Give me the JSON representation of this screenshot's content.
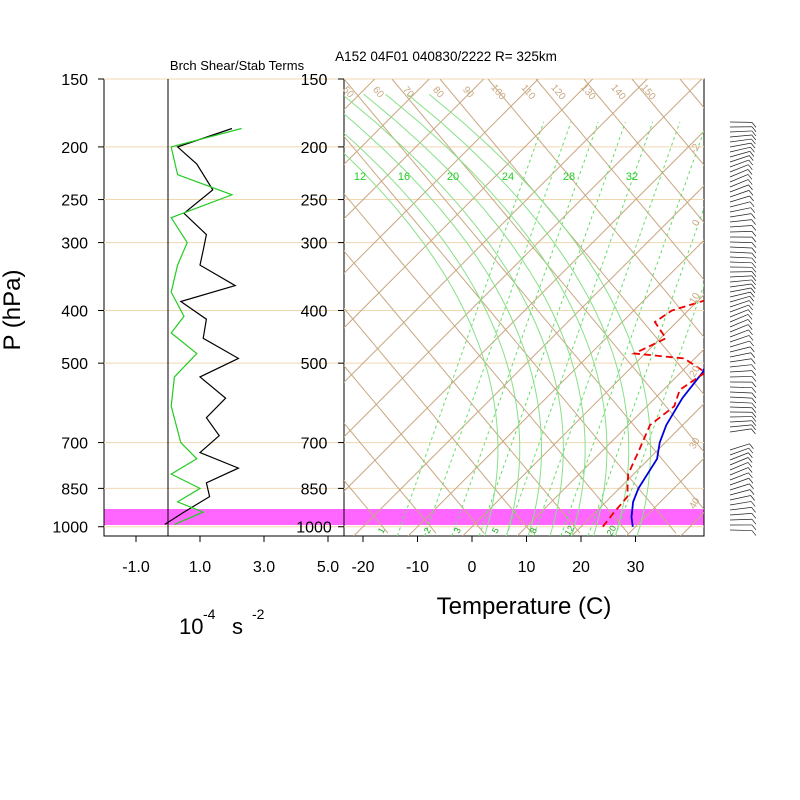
{
  "header": {
    "title": "A152 04F01 040830/2222 R= 325km",
    "panel_title": "Brch Shear/Stab Terms"
  },
  "axes": {
    "pressure_label": "P (hPa)",
    "pressure_levels": [
      150,
      200,
      250,
      300,
      400,
      500,
      700,
      850,
      1000
    ],
    "pressure_tick_labels": [
      "150",
      "200",
      "250",
      "300",
      "400",
      "500",
      "700",
      "850",
      "1000"
    ],
    "left_x_ticks": [
      "-1.0",
      "1.0",
      "3.0",
      "5.0"
    ],
    "left_x_tick_values": [
      -1.0,
      1.0,
      3.0,
      5.0
    ],
    "left_units": {
      "base": "10",
      "exp": "-4",
      "unit": "s",
      "unit_exp": "-2"
    },
    "temp_ticks": [
      "-20",
      "-10",
      "0",
      "10",
      "20",
      "30"
    ],
    "temp_tick_values": [
      -20,
      -10,
      0,
      10,
      20,
      30
    ],
    "temp_label": "Temperature (C)"
  },
  "skewt_labels": {
    "dry_adiabat_labels": [
      "50",
      "60",
      "70",
      "80",
      "90",
      "100",
      "110",
      "120",
      "130",
      "140",
      "150"
    ],
    "mixing_ratio_labels": [
      "12",
      "16",
      "20",
      "24",
      "28",
      "32"
    ],
    "bottom_labels": [
      "1",
      "2",
      "3",
      "5",
      "8",
      "12",
      "20"
    ],
    "right_edge_labels": [
      "-2",
      "0",
      "10",
      "20",
      "30",
      "40"
    ]
  },
  "colors": {
    "temperature": "#0000dd",
    "dewpoint": "#ee0000",
    "shear_term": "#000000",
    "stability_term": "#22cc22",
    "highlight_band": "#ff66ff",
    "background_lines": "#c8a882",
    "mixing_ratio_lines": "#66dd66"
  },
  "chart_data": [
    {
      "type": "line",
      "title": "Brch Shear/Stab Terms",
      "xlabel": "10^-4 s^-2",
      "ylabel": "P (hPa)",
      "xlim": [
        -2.0,
        5.5
      ],
      "ylim": [
        1000,
        150
      ],
      "y_scale": "log",
      "series": [
        {
          "color": "#000000",
          "points": [
            [
              2.0,
              185
            ],
            [
              0.3,
              200
            ],
            [
              0.9,
              215
            ],
            [
              1.4,
              240
            ],
            [
              0.5,
              265
            ],
            [
              1.2,
              290
            ],
            [
              1.1,
              310
            ],
            [
              1.0,
              330
            ],
            [
              2.1,
              360
            ],
            [
              0.4,
              385
            ],
            [
              1.2,
              415
            ],
            [
              1.1,
              450
            ],
            [
              2.2,
              490
            ],
            [
              1.0,
              530
            ],
            [
              1.8,
              580
            ],
            [
              1.2,
              630
            ],
            [
              1.6,
              680
            ],
            [
              1.0,
              730
            ],
            [
              2.2,
              780
            ],
            [
              1.2,
              830
            ],
            [
              1.3,
              880
            ],
            [
              0.5,
              940
            ],
            [
              -0.1,
              990
            ]
          ]
        },
        {
          "color": "#22cc22",
          "points": [
            [
              2.3,
              185
            ],
            [
              0.1,
              200
            ],
            [
              0.3,
              225
            ],
            [
              2.0,
              245
            ],
            [
              0.1,
              270
            ],
            [
              0.6,
              300
            ],
            [
              0.3,
              330
            ],
            [
              0.1,
              370
            ],
            [
              0.5,
              410
            ],
            [
              0.1,
              440
            ],
            [
              0.9,
              480
            ],
            [
              0.2,
              530
            ],
            [
              0.1,
              600
            ],
            [
              0.4,
              700
            ],
            [
              0.9,
              750
            ],
            [
              0.1,
              800
            ],
            [
              1.0,
              850
            ],
            [
              0.3,
              900
            ],
            [
              1.1,
              940
            ],
            [
              0.2,
              990
            ]
          ]
        }
      ]
    },
    {
      "type": "line",
      "title": "A152 04F01 040830/2222 R= 325km",
      "xlabel": "Temperature (C)",
      "ylabel": "P (hPa)",
      "xlim": [
        -23,
        43
      ],
      "ylim": [
        1000,
        150
      ],
      "y_scale": "log",
      "grid": true,
      "series": [
        {
          "color": "#0000dd",
          "points": [
            [
              29.5,
              1000
            ],
            [
              27.5,
              960
            ],
            [
              25.0,
              900
            ],
            [
              23.5,
              850
            ],
            [
              21.5,
              750
            ],
            [
              19.0,
              700
            ],
            [
              17.0,
              650
            ],
            [
              15.0,
              580
            ],
            [
              14.0,
              520
            ],
            [
              11.0,
              460
            ],
            [
              8.0,
              400
            ],
            [
              6.0,
              360
            ],
            [
              4.0,
              330
            ],
            [
              1.0,
              300
            ],
            [
              -3.0,
              270
            ],
            [
              -6.0,
              250
            ],
            [
              -9.0,
              225
            ],
            [
              -12.0,
              205
            ],
            [
              -14.0,
              185
            ]
          ]
        },
        {
          "color": "#ee0000",
          "dashed": true,
          "points": [
            [
              24.0,
              1000
            ],
            [
              23.5,
              950
            ],
            [
              23.0,
              880
            ],
            [
              21.0,
              840
            ],
            [
              19.0,
              800
            ],
            [
              16.5,
              720
            ],
            [
              14.0,
              650
            ],
            [
              15.0,
              600
            ],
            [
              13.0,
              560
            ],
            [
              14.5,
              520
            ],
            [
              8.0,
              490
            ],
            [
              -2.0,
              480
            ],
            [
              1.0,
              450
            ],
            [
              -4.0,
              420
            ],
            [
              -3.0,
              400
            ],
            [
              2.0,
              380
            ],
            [
              -1.0,
              350
            ],
            [
              3.0,
              330
            ],
            [
              2.0,
              310
            ],
            [
              -3.0,
              280
            ],
            [
              -6.0,
              250
            ],
            [
              -12.0,
              225
            ],
            [
              -17.0,
              205
            ],
            [
              -20.0,
              190
            ]
          ]
        }
      ]
    }
  ]
}
